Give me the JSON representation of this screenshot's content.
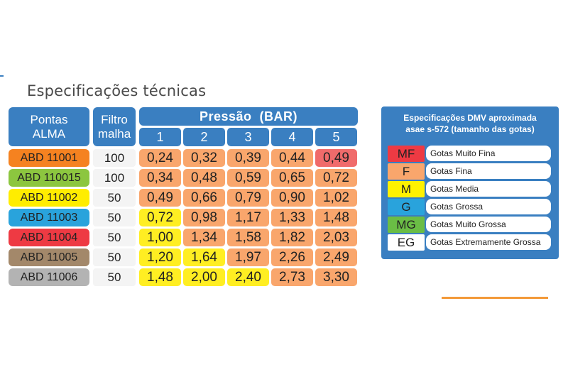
{
  "title": "Especificações técnicas",
  "table": {
    "header_pontas": "Pontas\nALMA",
    "header_filtro": "Filtro\nmalha",
    "header_pressao": "Pressão  (BAR)",
    "pressures": [
      "1",
      "2",
      "3",
      "4",
      "5"
    ],
    "rows": [
      {
        "name": "ABD 11001",
        "color": "#f58220",
        "filtro": "100",
        "values": [
          "0,24",
          "0,32",
          "0,39",
          "0,44",
          "0,49"
        ],
        "classes": [
          "F",
          "F",
          "F",
          "F",
          "MF"
        ]
      },
      {
        "name": "ABD 110015",
        "color": "#8cc63f",
        "filtro": "100",
        "values": [
          "0,34",
          "0,48",
          "0,59",
          "0,65",
          "0,72"
        ],
        "classes": [
          "F",
          "F",
          "F",
          "F",
          "F"
        ]
      },
      {
        "name": "ABD 11002",
        "color": "#ffed00",
        "filtro": "50",
        "values": [
          "0,49",
          "0,66",
          "0,79",
          "0,90",
          "1,02"
        ],
        "classes": [
          "F",
          "F",
          "F",
          "F",
          "F"
        ]
      },
      {
        "name": "ABD 11003",
        "color": "#29a3dc",
        "filtro": "50",
        "values": [
          "0,72",
          "0,98",
          "1,17",
          "1,33",
          "1,48"
        ],
        "classes": [
          "M",
          "F",
          "F",
          "F",
          "F"
        ]
      },
      {
        "name": "ABD 11004",
        "color": "#ee3a43",
        "filtro": "50",
        "values": [
          "1,00",
          "1,34",
          "1,58",
          "1,82",
          "2,03"
        ],
        "classes": [
          "M",
          "F",
          "F",
          "F",
          "F"
        ]
      },
      {
        "name": "ABD 11005",
        "color": "#a3886a",
        "filtro": "50",
        "values": [
          "1,20",
          "1,64",
          "1,97",
          "2,26",
          "2,49"
        ],
        "classes": [
          "M",
          "M",
          "F",
          "F",
          "F"
        ]
      },
      {
        "name": "ABD 11006",
        "color": "#b3b3b3",
        "filtro": "50",
        "values": [
          "1,48",
          "2,00",
          "2,40",
          "2,73",
          "3,30"
        ],
        "classes": [
          "M",
          "M",
          "M",
          "F",
          "F"
        ]
      }
    ]
  },
  "legend": {
    "title": "Especificações DMV aproximada\nasae s-572 (tamanho das gotas)",
    "items": [
      {
        "code": "MF",
        "label": "Gotas Muito Fina",
        "color": "#ee3a43"
      },
      {
        "code": "F",
        "label": "Gotas Fina",
        "color": "#f9a66c"
      },
      {
        "code": "M",
        "label": "Gotas Media",
        "color": "#fff200"
      },
      {
        "code": "G",
        "label": "Gotas Grossa",
        "color": "#29a3dc"
      },
      {
        "code": "MG",
        "label": "Gotas Muito Grossa",
        "color": "#6abd45"
      },
      {
        "code": "EG",
        "label": "Gotas Extremamente Grossa",
        "color": "#ffffff"
      }
    ]
  },
  "class_colors": {
    "MF": "#f06b6b",
    "F": "#f9a66c",
    "M": "#ffee22"
  }
}
